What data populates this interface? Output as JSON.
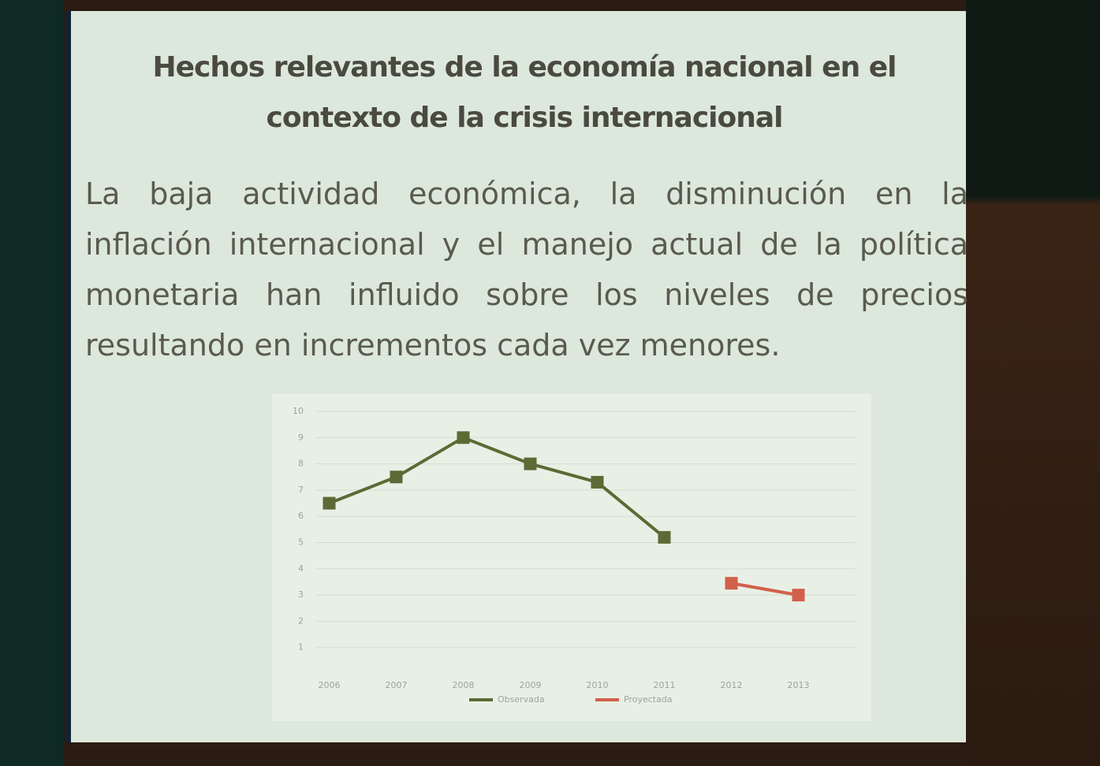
{
  "slide": {
    "title": "Hechos relevantes de la economía nacional en el contexto de la crisis internacional",
    "body": "La baja actividad económica, la disminución en la inflación internacional y el manejo actual de la política monetaria han influido sobre los niveles de precios resultando en incrementos cada vez menores."
  },
  "chart_data": {
    "type": "line",
    "categories": [
      "2006",
      "2007",
      "2008",
      "2009",
      "2010",
      "2011",
      "2012",
      "2013"
    ],
    "series": [
      {
        "name": "Observada",
        "color": "#5d6a35",
        "values": [
          6.5,
          7.5,
          9.0,
          8.0,
          7.3,
          5.2,
          null,
          null
        ]
      },
      {
        "name": "Proyectada",
        "color": "#d2604a",
        "values": [
          null,
          null,
          null,
          null,
          null,
          null,
          3.45,
          3.0
        ]
      }
    ],
    "ylim": [
      0,
      10
    ],
    "yticks": [
      1,
      2,
      3,
      4,
      5,
      6,
      7,
      8,
      9,
      10
    ],
    "grid": true,
    "legend": "bottom"
  }
}
